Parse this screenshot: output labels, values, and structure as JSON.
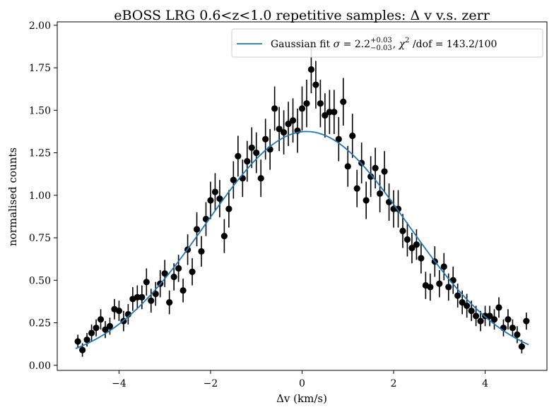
{
  "chart_data": {
    "type": "scatter",
    "title": "eBOSS LRG 0.6<z<1.0 repetitive samples: Δ v v.s. zerr",
    "xlabel": "Δv (km/s)",
    "ylabel": "normalised counts",
    "xlim": [
      -5.35,
      5.35
    ],
    "ylim": [
      -0.03,
      2.02
    ],
    "xticks": [
      -4,
      -2,
      0,
      2,
      4
    ],
    "xtick_labels": [
      "−4",
      "−2",
      "0",
      "2",
      "4"
    ],
    "yticks": [
      0.0,
      0.25,
      0.5,
      0.75,
      1.0,
      1.25,
      1.5,
      1.75,
      2.0
    ],
    "ytick_labels": [
      "0.00",
      "0.25",
      "0.50",
      "0.75",
      "1.00",
      "1.25",
      "1.50",
      "1.75",
      "2.00"
    ],
    "grid": false,
    "legend": {
      "placement": "top-right",
      "entries": [
        {
          "parts": [
            {
              "text": "Gaussian fit "
            },
            {
              "text": "σ",
              "style": "italic"
            },
            {
              "text": " = 2.2"
            },
            {
              "text": "+0.03",
              "shift": "super"
            },
            {
              "text": "−0.03",
              "shift": "sub"
            },
            {
              "text": ", "
            },
            {
              "text": "χ",
              "style": "italic"
            },
            {
              "text": "2",
              "shift": "power"
            },
            {
              "text": " /dof = 143.2/100"
            }
          ]
        }
      ]
    },
    "series": [
      {
        "kind": "errorbar",
        "color": "#000000",
        "x": [
          -4.9,
          -4.8,
          -4.7,
          -4.6,
          -4.5,
          -4.4,
          -4.3,
          -4.2,
          -4.1,
          -4.0,
          -3.9,
          -3.8,
          -3.7,
          -3.6,
          -3.5,
          -3.4,
          -3.3,
          -3.2,
          -3.1,
          -3.0,
          -2.9,
          -2.8,
          -2.7,
          -2.6,
          -2.5,
          -2.4,
          -2.3,
          -2.2,
          -2.1,
          -2.0,
          -1.9,
          -1.8,
          -1.7,
          -1.6,
          -1.5,
          -1.4,
          -1.3,
          -1.2,
          -1.1,
          -1.0,
          -0.9,
          -0.8,
          -0.7,
          -0.6,
          -0.5,
          -0.4,
          -0.3,
          -0.2,
          -0.1,
          0.0,
          0.1,
          0.2,
          0.3,
          0.4,
          0.5,
          0.6,
          0.7,
          0.8,
          0.9,
          1.0,
          1.1,
          1.2,
          1.3,
          1.4,
          1.5,
          1.6,
          1.7,
          1.8,
          1.9,
          2.0,
          2.1,
          2.2,
          2.3,
          2.4,
          2.5,
          2.6,
          2.7,
          2.8,
          2.9,
          3.0,
          3.1,
          3.2,
          3.3,
          3.4,
          3.5,
          3.6,
          3.7,
          3.8,
          3.9,
          4.0,
          4.1,
          4.2,
          4.3,
          4.4,
          4.5,
          4.6,
          4.7,
          4.8,
          4.9
        ],
        "y": [
          0.14,
          0.09,
          0.15,
          0.19,
          0.22,
          0.27,
          0.21,
          0.23,
          0.33,
          0.32,
          0.26,
          0.3,
          0.39,
          0.4,
          0.4,
          0.49,
          0.38,
          0.42,
          0.48,
          0.54,
          0.37,
          0.52,
          0.57,
          0.44,
          0.68,
          0.55,
          0.8,
          0.67,
          0.86,
          0.97,
          1.02,
          0.98,
          0.76,
          0.92,
          1.09,
          1.23,
          1.1,
          1.2,
          1.28,
          1.25,
          1.1,
          1.33,
          1.27,
          1.51,
          1.39,
          1.37,
          1.42,
          1.44,
          1.38,
          1.51,
          1.54,
          1.74,
          1.65,
          1.54,
          1.47,
          1.49,
          1.49,
          1.33,
          1.55,
          1.17,
          1.35,
          1.04,
          1.19,
          0.97,
          1.11,
          1.16,
          1.01,
          1.14,
          0.96,
          0.92,
          0.92,
          0.79,
          0.74,
          0.69,
          0.71,
          0.63,
          0.47,
          0.46,
          0.61,
          0.48,
          0.58,
          0.46,
          0.5,
          0.41,
          0.37,
          0.35,
          0.32,
          0.29,
          0.26,
          0.29,
          0.29,
          0.27,
          0.34,
          0.22,
          0.27,
          0.22,
          0.18,
          0.11,
          0.26
        ],
        "err": [
          0.04,
          0.04,
          0.04,
          0.05,
          0.05,
          0.06,
          0.05,
          0.05,
          0.06,
          0.06,
          0.06,
          0.06,
          0.07,
          0.07,
          0.07,
          0.08,
          0.07,
          0.07,
          0.08,
          0.08,
          0.07,
          0.08,
          0.08,
          0.07,
          0.09,
          0.08,
          0.1,
          0.09,
          0.1,
          0.11,
          0.11,
          0.11,
          0.1,
          0.11,
          0.11,
          0.12,
          0.11,
          0.12,
          0.12,
          0.12,
          0.11,
          0.12,
          0.12,
          0.13,
          0.13,
          0.13,
          0.13,
          0.13,
          0.13,
          0.13,
          0.14,
          0.14,
          0.14,
          0.14,
          0.13,
          0.13,
          0.13,
          0.13,
          0.14,
          0.12,
          0.13,
          0.11,
          0.12,
          0.11,
          0.12,
          0.12,
          0.11,
          0.12,
          0.11,
          0.11,
          0.11,
          0.1,
          0.1,
          0.09,
          0.09,
          0.09,
          0.08,
          0.08,
          0.09,
          0.08,
          0.08,
          0.08,
          0.08,
          0.07,
          0.07,
          0.07,
          0.06,
          0.06,
          0.06,
          0.06,
          0.06,
          0.06,
          0.06,
          0.05,
          0.06,
          0.05,
          0.05,
          0.04,
          0.05
        ]
      },
      {
        "kind": "line",
        "color": "#1f77b4",
        "model": "gaussian",
        "amplitude": 1.375,
        "mean": 0.1,
        "sigma": 2.2,
        "x_range": [
          -4.95,
          4.95
        ]
      }
    ]
  }
}
